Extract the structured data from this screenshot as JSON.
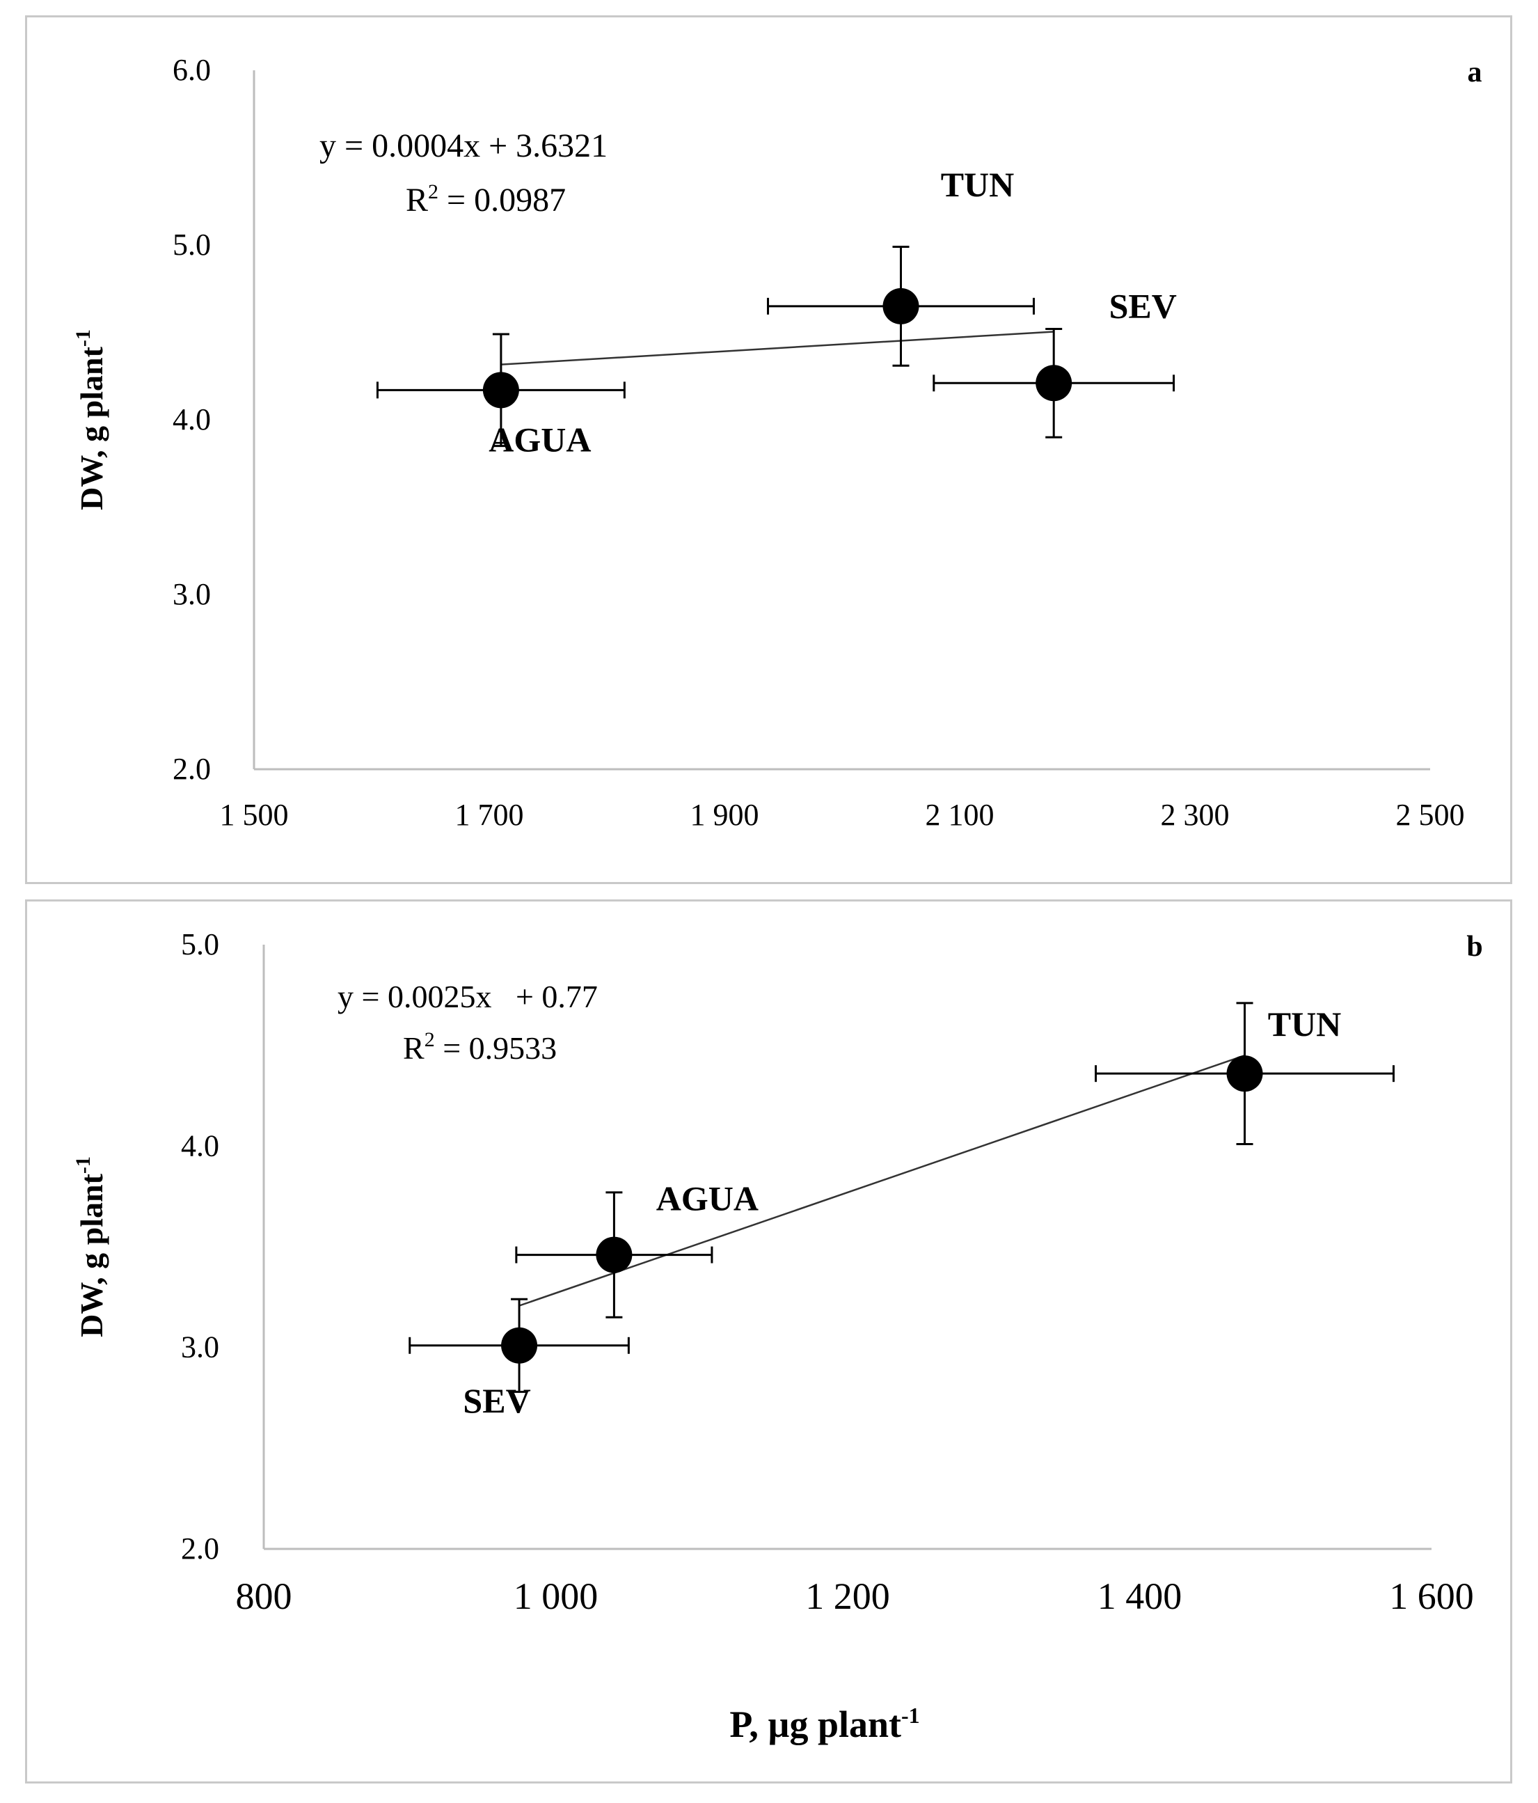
{
  "chart_data": [
    {
      "type": "scatter",
      "panel_letter": "a",
      "ylabel": "DW, g plant",
      "ylabel_sup": "-1",
      "xlabel": "",
      "xlim": [
        1500,
        2500
      ],
      "ylim": [
        2.0,
        6.0
      ],
      "xticks": [
        1500,
        1700,
        1900,
        2100,
        2300,
        2500
      ],
      "xtick_labels": [
        "1 500",
        "1 700",
        "1 900",
        "2 100",
        "2 300",
        "2 500"
      ],
      "yticks": [
        2.0,
        3.0,
        4.0,
        5.0,
        6.0
      ],
      "ytick_labels": [
        "2.0",
        "3.0",
        "4.0",
        "5.0",
        "6.0"
      ],
      "points": [
        {
          "label": "AGUA",
          "x": 1710,
          "y": 4.17,
          "xerr": 105,
          "yerr": 0.32
        },
        {
          "label": "TUN",
          "x": 2050,
          "y": 4.65,
          "xerr": 113,
          "yerr": 0.34
        },
        {
          "label": "SEV",
          "x": 2180,
          "y": 4.21,
          "xerr": 102,
          "yerr": 0.31
        }
      ],
      "trendline": {
        "slope": 0.0004,
        "intercept": 3.6321,
        "x_range": [
          1710,
          2180
        ]
      },
      "equation": "y = 0.0004x + 3.6321",
      "r2_label": "R",
      "r2_sup": "2",
      "r2_value": " = 0.0987"
    },
    {
      "type": "scatter",
      "panel_letter": "b",
      "ylabel": "DW, g plant",
      "ylabel_sup": "-1",
      "xlabel": "P, µg plant",
      "xlabel_sup": "-1",
      "xlim": [
        800,
        1600
      ],
      "ylim": [
        2.0,
        5.0
      ],
      "xticks": [
        800,
        1000,
        1200,
        1400,
        1600
      ],
      "xtick_labels": [
        "800",
        "1 000",
        "1 200",
        "1 400",
        "1 600"
      ],
      "yticks": [
        2.0,
        3.0,
        4.0,
        5.0
      ],
      "ytick_labels": [
        "2.0",
        "3.0",
        "4.0",
        "5.0"
      ],
      "points": [
        {
          "label": "SEV",
          "x": 975,
          "y": 3.01,
          "xerr": 75,
          "yerr": 0.23
        },
        {
          "label": "AGUA",
          "x": 1040,
          "y": 3.46,
          "xerr": 67,
          "yerr": 0.31
        },
        {
          "label": "TUN",
          "x": 1472,
          "y": 4.36,
          "xerr": 102,
          "yerr": 0.35
        }
      ],
      "trendline": {
        "slope": 0.0025,
        "intercept": 0.77,
        "x_range": [
          975,
          1472
        ]
      },
      "equation": "y = 0.0025x   + 0.77",
      "r2_label": "R",
      "r2_sup": "2",
      "r2_value": " = 0.9533"
    }
  ]
}
